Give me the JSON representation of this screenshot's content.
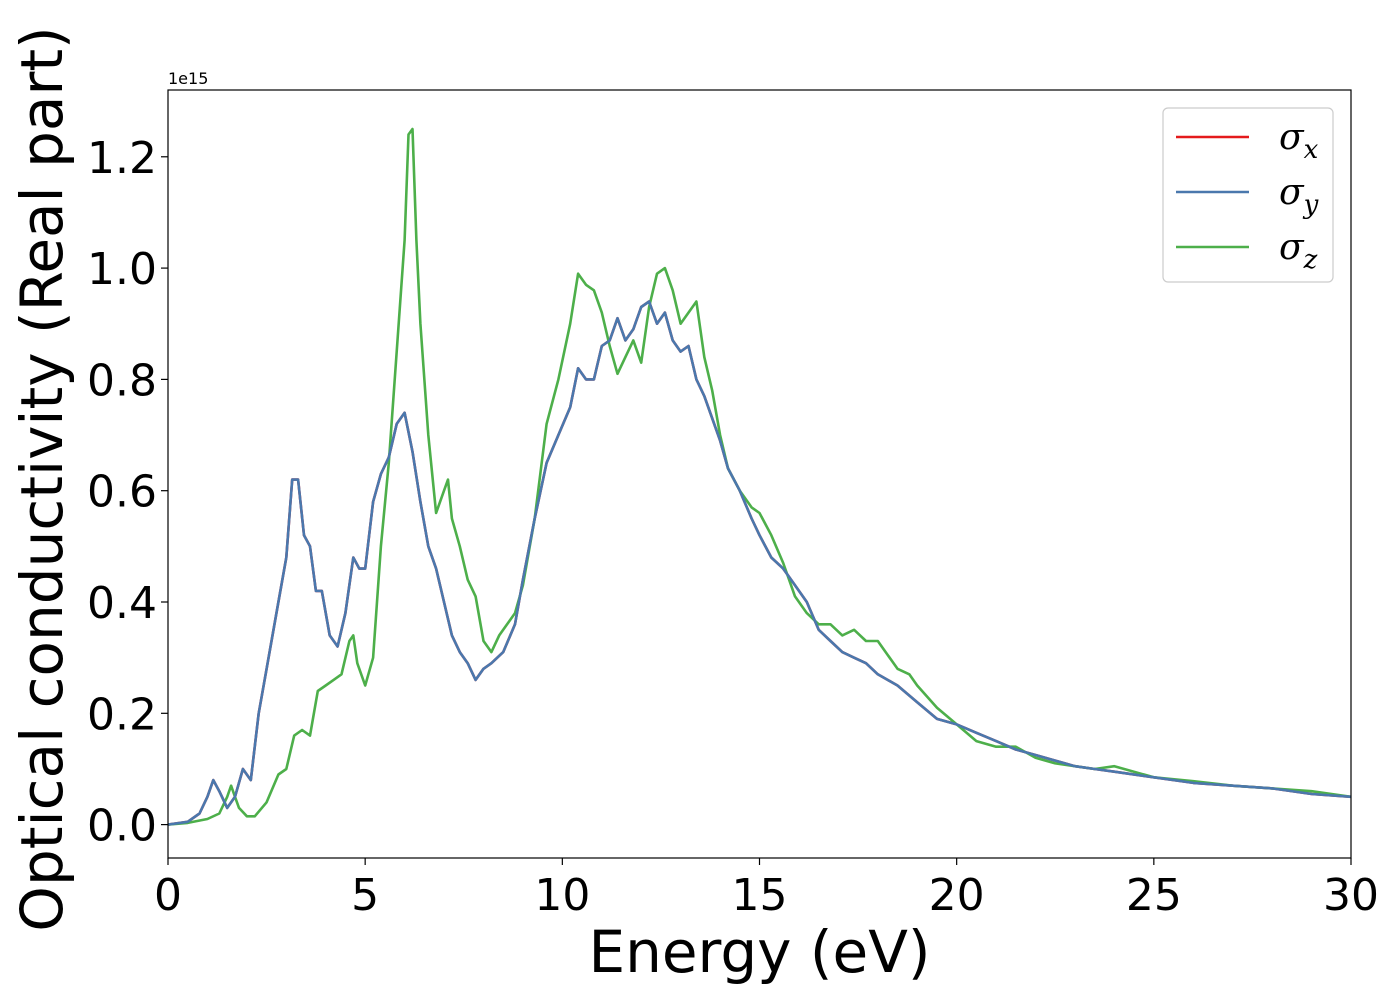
{
  "chart_data": {
    "type": "line",
    "xlabel": "Energy (eV)",
    "ylabel": "Optical conductivity (Real part)",
    "offset_label": "1e15",
    "xlim": [
      0,
      30
    ],
    "ylim": [
      -0.06,
      1.32
    ],
    "xticks": [
      0,
      5,
      10,
      15,
      20,
      25,
      30
    ],
    "xtick_labels": [
      "0",
      "5",
      "10",
      "15",
      "20",
      "25",
      "30"
    ],
    "yticks": [
      0.0,
      0.2,
      0.4,
      0.6,
      0.8,
      1.0,
      1.2
    ],
    "ytick_labels": [
      "0.0",
      "0.2",
      "0.4",
      "0.6",
      "0.8",
      "1.0",
      "1.2"
    ],
    "grid": false,
    "legend_position": "top-right",
    "series": [
      {
        "name": "σ",
        "subscript": "x",
        "color": "#e41a1c",
        "x": [
          0,
          0.5,
          0.8,
          1.0,
          1.15,
          1.3,
          1.5,
          1.7,
          1.9,
          2.1,
          2.3,
          2.5,
          2.8,
          3.0,
          3.15,
          3.3,
          3.45,
          3.6,
          3.75,
          3.9,
          4.1,
          4.3,
          4.5,
          4.7,
          4.85,
          5.0,
          5.2,
          5.4,
          5.6,
          5.8,
          6.0,
          6.2,
          6.4,
          6.6,
          6.8,
          7.0,
          7.2,
          7.4,
          7.6,
          7.8,
          8.0,
          8.2,
          8.5,
          8.8,
          9.0,
          9.3,
          9.6,
          9.9,
          10.2,
          10.4,
          10.6,
          10.8,
          11.0,
          11.2,
          11.4,
          11.6,
          11.8,
          12.0,
          12.2,
          12.4,
          12.6,
          12.8,
          13.0,
          13.2,
          13.4,
          13.6,
          13.8,
          14.0,
          14.2,
          14.5,
          14.8,
          15.0,
          15.3,
          15.6,
          15.9,
          16.2,
          16.5,
          16.8,
          17.1,
          17.4,
          17.7,
          18.0,
          18.5,
          19.0,
          19.5,
          20.0,
          20.5,
          21.0,
          21.5,
          22.0,
          22.5,
          23.0,
          23.5,
          24.0,
          25.0,
          26.0,
          27.0,
          28.0,
          29.0,
          30.0
        ],
        "values": [
          0.0,
          0.005,
          0.02,
          0.05,
          0.08,
          0.06,
          0.03,
          0.05,
          0.1,
          0.08,
          0.2,
          0.28,
          0.4,
          0.48,
          0.62,
          0.62,
          0.52,
          0.5,
          0.42,
          0.42,
          0.34,
          0.32,
          0.38,
          0.48,
          0.46,
          0.46,
          0.58,
          0.63,
          0.66,
          0.72,
          0.74,
          0.67,
          0.58,
          0.5,
          0.46,
          0.4,
          0.34,
          0.31,
          0.29,
          0.26,
          0.28,
          0.29,
          0.31,
          0.36,
          0.44,
          0.55,
          0.65,
          0.7,
          0.75,
          0.82,
          0.8,
          0.8,
          0.86,
          0.87,
          0.91,
          0.87,
          0.89,
          0.93,
          0.94,
          0.9,
          0.92,
          0.87,
          0.85,
          0.86,
          0.8,
          0.77,
          0.73,
          0.69,
          0.64,
          0.6,
          0.55,
          0.52,
          0.48,
          0.46,
          0.43,
          0.4,
          0.35,
          0.33,
          0.31,
          0.3,
          0.29,
          0.27,
          0.25,
          0.22,
          0.19,
          0.18,
          0.165,
          0.15,
          0.135,
          0.125,
          0.115,
          0.105,
          0.1,
          0.095,
          0.085,
          0.075,
          0.07,
          0.065,
          0.055,
          0.05
        ]
      },
      {
        "name": "σ",
        "subscript": "y",
        "color": "#4a78ad",
        "x": [
          0,
          0.5,
          0.8,
          1.0,
          1.15,
          1.3,
          1.5,
          1.7,
          1.9,
          2.1,
          2.3,
          2.5,
          2.8,
          3.0,
          3.15,
          3.3,
          3.45,
          3.6,
          3.75,
          3.9,
          4.1,
          4.3,
          4.5,
          4.7,
          4.85,
          5.0,
          5.2,
          5.4,
          5.6,
          5.8,
          6.0,
          6.2,
          6.4,
          6.6,
          6.8,
          7.0,
          7.2,
          7.4,
          7.6,
          7.8,
          8.0,
          8.2,
          8.5,
          8.8,
          9.0,
          9.3,
          9.6,
          9.9,
          10.2,
          10.4,
          10.6,
          10.8,
          11.0,
          11.2,
          11.4,
          11.6,
          11.8,
          12.0,
          12.2,
          12.4,
          12.6,
          12.8,
          13.0,
          13.2,
          13.4,
          13.6,
          13.8,
          14.0,
          14.2,
          14.5,
          14.8,
          15.0,
          15.3,
          15.6,
          15.9,
          16.2,
          16.5,
          16.8,
          17.1,
          17.4,
          17.7,
          18.0,
          18.5,
          19.0,
          19.5,
          20.0,
          20.5,
          21.0,
          21.5,
          22.0,
          22.5,
          23.0,
          23.5,
          24.0,
          25.0,
          26.0,
          27.0,
          28.0,
          29.0,
          30.0
        ],
        "values": [
          0.0,
          0.005,
          0.02,
          0.05,
          0.08,
          0.06,
          0.03,
          0.05,
          0.1,
          0.08,
          0.2,
          0.28,
          0.4,
          0.48,
          0.62,
          0.62,
          0.52,
          0.5,
          0.42,
          0.42,
          0.34,
          0.32,
          0.38,
          0.48,
          0.46,
          0.46,
          0.58,
          0.63,
          0.66,
          0.72,
          0.74,
          0.67,
          0.58,
          0.5,
          0.46,
          0.4,
          0.34,
          0.31,
          0.29,
          0.26,
          0.28,
          0.29,
          0.31,
          0.36,
          0.44,
          0.55,
          0.65,
          0.7,
          0.75,
          0.82,
          0.8,
          0.8,
          0.86,
          0.87,
          0.91,
          0.87,
          0.89,
          0.93,
          0.94,
          0.9,
          0.92,
          0.87,
          0.85,
          0.86,
          0.8,
          0.77,
          0.73,
          0.69,
          0.64,
          0.6,
          0.55,
          0.52,
          0.48,
          0.46,
          0.43,
          0.4,
          0.35,
          0.33,
          0.31,
          0.3,
          0.29,
          0.27,
          0.25,
          0.22,
          0.19,
          0.18,
          0.165,
          0.15,
          0.135,
          0.125,
          0.115,
          0.105,
          0.1,
          0.095,
          0.085,
          0.075,
          0.07,
          0.065,
          0.055,
          0.05
        ]
      },
      {
        "name": "σ",
        "subscript": "z",
        "color": "#4daf4a",
        "x": [
          0,
          0.5,
          1.0,
          1.3,
          1.5,
          1.6,
          1.7,
          1.8,
          2.0,
          2.2,
          2.5,
          2.8,
          3.0,
          3.2,
          3.4,
          3.6,
          3.8,
          4.0,
          4.2,
          4.4,
          4.6,
          4.7,
          4.8,
          5.0,
          5.2,
          5.4,
          5.6,
          5.8,
          6.0,
          6.1,
          6.2,
          6.3,
          6.4,
          6.6,
          6.8,
          7.0,
          7.1,
          7.2,
          7.4,
          7.6,
          7.8,
          8.0,
          8.2,
          8.4,
          8.6,
          8.8,
          9.0,
          9.3,
          9.6,
          9.9,
          10.2,
          10.4,
          10.6,
          10.8,
          11.0,
          11.2,
          11.4,
          11.6,
          11.8,
          12.0,
          12.2,
          12.4,
          12.6,
          12.8,
          13.0,
          13.2,
          13.4,
          13.6,
          13.8,
          14.0,
          14.2,
          14.5,
          14.8,
          15.0,
          15.3,
          15.6,
          15.9,
          16.2,
          16.5,
          16.8,
          17.1,
          17.4,
          17.7,
          18.0,
          18.5,
          18.8,
          19.0,
          19.5,
          20.0,
          20.5,
          21.0,
          21.5,
          22.0,
          22.5,
          23.0,
          23.5,
          24.0,
          25.0,
          26.0,
          27.0,
          28.0,
          29.0,
          30.0
        ],
        "values": [
          0.0,
          0.003,
          0.01,
          0.02,
          0.05,
          0.07,
          0.05,
          0.03,
          0.015,
          0.015,
          0.04,
          0.09,
          0.1,
          0.16,
          0.17,
          0.16,
          0.24,
          0.25,
          0.26,
          0.27,
          0.33,
          0.34,
          0.29,
          0.25,
          0.3,
          0.5,
          0.65,
          0.85,
          1.05,
          1.24,
          1.25,
          1.05,
          0.9,
          0.7,
          0.56,
          0.6,
          0.62,
          0.55,
          0.5,
          0.44,
          0.41,
          0.33,
          0.31,
          0.34,
          0.36,
          0.38,
          0.43,
          0.55,
          0.72,
          0.8,
          0.9,
          0.99,
          0.97,
          0.96,
          0.92,
          0.86,
          0.81,
          0.84,
          0.87,
          0.83,
          0.93,
          0.99,
          1.0,
          0.96,
          0.9,
          0.92,
          0.94,
          0.84,
          0.78,
          0.7,
          0.64,
          0.6,
          0.57,
          0.56,
          0.52,
          0.47,
          0.41,
          0.38,
          0.36,
          0.36,
          0.34,
          0.35,
          0.33,
          0.33,
          0.28,
          0.27,
          0.25,
          0.21,
          0.18,
          0.15,
          0.14,
          0.14,
          0.12,
          0.11,
          0.105,
          0.1,
          0.105,
          0.085,
          0.078,
          0.07,
          0.065,
          0.06,
          0.05
        ]
      }
    ]
  }
}
